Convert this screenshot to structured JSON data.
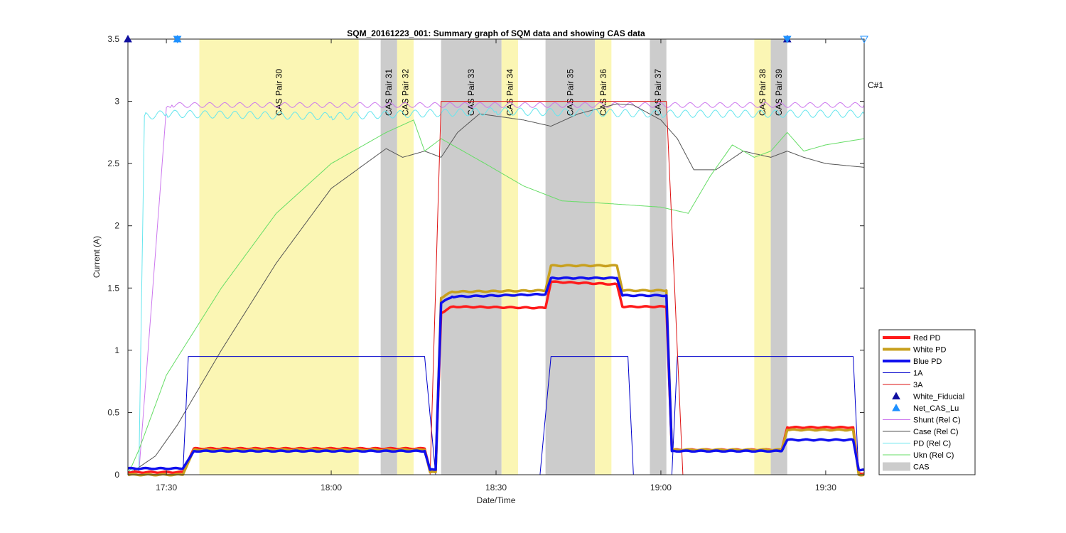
{
  "chart_data": {
    "type": "line",
    "title": "SQM_20161223_001: Summary graph of SQM data and showing CAS data",
    "xlabel": "Date/Time",
    "ylabel": "Current (A)",
    "xlim": [
      "17:23",
      "19:37"
    ],
    "ylim": [
      0,
      3.5
    ],
    "x_ticks": [
      "17:30",
      "18:00",
      "18:30",
      "19:00",
      "19:30"
    ],
    "y_ticks": [
      "0",
      "0.5",
      "1",
      "1.5",
      "2",
      "2.5",
      "3",
      "3.5"
    ],
    "grid": false,
    "legend_position": "bottom-right",
    "corner_label": "C#1",
    "cas_regions": [
      {
        "label": "CAS Pair 30",
        "start": "17:36",
        "end": "18:05",
        "color": "#fbf6b4"
      },
      {
        "label": "CAS Pair 31",
        "start": "18:09",
        "end": "18:12",
        "color": "#cccccc"
      },
      {
        "label": "CAS Pair 32",
        "start": "18:12",
        "end": "18:15",
        "color": "#fbf6b4"
      },
      {
        "label": "CAS Pair 33",
        "start": "18:20",
        "end": "18:31",
        "color": "#cccccc"
      },
      {
        "label": "CAS Pair 34",
        "start": "18:31",
        "end": "18:34",
        "color": "#fbf6b4"
      },
      {
        "label": "CAS Pair 35",
        "start": "18:39",
        "end": "18:48",
        "color": "#cccccc"
      },
      {
        "label": "CAS Pair 36",
        "start": "18:48",
        "end": "18:51",
        "color": "#fbf6b4"
      },
      {
        "label": "CAS Pair 37",
        "start": "18:58",
        "end": "19:01",
        "color": "#cccccc"
      },
      {
        "label": "CAS Pair 38",
        "start": "19:17",
        "end": "19:20",
        "color": "#fbf6b4"
      },
      {
        "label": "CAS Pair 39",
        "start": "19:20",
        "end": "19:23",
        "color": "#cccccc"
      }
    ],
    "markers": [
      {
        "series": "White_Fiducial",
        "x": "17:23",
        "y": 3.5,
        "shape": "triangle",
        "color": "#1010a0"
      },
      {
        "series": "Net_CAS_Lu",
        "x": "17:32",
        "y": 3.5,
        "shape": "triangle",
        "color": "#1e90ff"
      },
      {
        "series": "Net_CAS_Lu",
        "x": "17:32",
        "y": 3.5,
        "shape": "triangle-down",
        "color": "#1e90ff"
      },
      {
        "series": "White_Fiducial",
        "x": "19:23",
        "y": 3.5,
        "shape": "triangle",
        "color": "#1010a0"
      },
      {
        "series": "Net_CAS_Lu",
        "x": "19:23",
        "y": 3.5,
        "shape": "triangle-down",
        "color": "#1e90ff"
      },
      {
        "series": "Net_CAS_Lu",
        "x": "19:37",
        "y": 3.5,
        "shape": "triangle-down-open",
        "color": "#1e90ff"
      }
    ],
    "series": [
      {
        "name": "Shunt (Rel C)",
        "color": "#cc77ee",
        "width": 1,
        "ripple": 0.02,
        "points": [
          [
            "17:23",
            0
          ],
          [
            "17:25",
            0.02
          ],
          [
            "17:30",
            2.95
          ],
          [
            "17:31",
            2.97
          ],
          [
            "19:37",
            2.97
          ]
        ]
      },
      {
        "name": "Case (Rel C)",
        "color": "#555555",
        "width": 1,
        "ripple": 0,
        "points": [
          [
            "17:23",
            0
          ],
          [
            "17:28",
            0.15
          ],
          [
            "17:32",
            0.4
          ],
          [
            "17:40",
            1.0
          ],
          [
            "17:50",
            1.7
          ],
          [
            "18:00",
            2.3
          ],
          [
            "18:10",
            2.62
          ],
          [
            "18:13",
            2.55
          ],
          [
            "18:17",
            2.6
          ],
          [
            "18:20",
            2.55
          ],
          [
            "18:23",
            2.75
          ],
          [
            "18:27",
            2.9
          ],
          [
            "18:35",
            2.85
          ],
          [
            "18:40",
            2.8
          ],
          [
            "18:45",
            2.9
          ],
          [
            "18:52",
            2.98
          ],
          [
            "18:55",
            2.97
          ],
          [
            "19:00",
            2.85
          ],
          [
            "19:03",
            2.7
          ],
          [
            "19:06",
            2.45
          ],
          [
            "19:10",
            2.45
          ],
          [
            "19:15",
            2.6
          ],
          [
            "19:20",
            2.55
          ],
          [
            "19:23",
            2.6
          ],
          [
            "19:26",
            2.55
          ],
          [
            "19:30",
            2.5
          ],
          [
            "19:37",
            2.47
          ]
        ]
      },
      {
        "name": "PD (Rel C)",
        "color": "#66e6ee",
        "width": 1,
        "ripple": 0.03,
        "points": [
          [
            "17:23",
            0
          ],
          [
            "17:25",
            0.05
          ],
          [
            "17:26",
            2.88
          ],
          [
            "17:30",
            2.9
          ],
          [
            "18:00",
            2.88
          ],
          [
            "18:30",
            2.92
          ],
          [
            "19:00",
            2.9
          ],
          [
            "19:37",
            2.9
          ]
        ]
      },
      {
        "name": "Ukn (Rel C)",
        "color": "#66dd66",
        "width": 1,
        "ripple": 0,
        "points": [
          [
            "17:23",
            0
          ],
          [
            "17:25",
            0.2
          ],
          [
            "17:30",
            0.8
          ],
          [
            "17:40",
            1.5
          ],
          [
            "17:50",
            2.1
          ],
          [
            "18:00",
            2.5
          ],
          [
            "18:10",
            2.75
          ],
          [
            "18:15",
            2.85
          ],
          [
            "18:17",
            2.6
          ],
          [
            "18:20",
            2.7
          ],
          [
            "18:28",
            2.5
          ],
          [
            "18:35",
            2.32
          ],
          [
            "18:42",
            2.2
          ],
          [
            "18:50",
            2.18
          ],
          [
            "19:00",
            2.15
          ],
          [
            "19:05",
            2.1
          ],
          [
            "19:09",
            2.4
          ],
          [
            "19:13",
            2.65
          ],
          [
            "19:17",
            2.55
          ],
          [
            "19:20",
            2.6
          ],
          [
            "19:23",
            2.75
          ],
          [
            "19:26",
            2.6
          ],
          [
            "19:30",
            2.65
          ],
          [
            "19:37",
            2.7
          ]
        ]
      },
      {
        "name": "1A",
        "color": "#0000cc",
        "width": 1,
        "ripple": 0,
        "points": [
          [
            "17:23",
            0
          ],
          [
            "17:33",
            0
          ],
          [
            "17:34",
            0.95
          ],
          [
            "18:17",
            0.95
          ],
          [
            "18:19",
            0
          ],
          [
            "18:38",
            0
          ],
          [
            "18:40",
            0.95
          ],
          [
            "18:54",
            0.95
          ],
          [
            "18:55",
            0
          ],
          [
            "19:02",
            0
          ],
          [
            "19:03",
            0.95
          ],
          [
            "19:35",
            0.95
          ],
          [
            "19:36",
            0
          ],
          [
            "19:37",
            0
          ]
        ]
      },
      {
        "name": "3A",
        "color": "#dd1111",
        "width": 1,
        "ripple": 0,
        "points": [
          [
            "17:23",
            0
          ],
          [
            "18:18",
            0
          ],
          [
            "18:20",
            3.0
          ],
          [
            "19:01",
            3.0
          ],
          [
            "19:04",
            0
          ],
          [
            "19:37",
            0
          ]
        ]
      },
      {
        "name": "Red PD",
        "color": "#ff1a1a",
        "width": 3.5,
        "ripple": 0.004,
        "points": [
          [
            "17:23",
            0.02
          ],
          [
            "17:33",
            0.02
          ],
          [
            "17:35",
            0.21
          ],
          [
            "18:17",
            0.21
          ],
          [
            "18:18",
            0.03
          ],
          [
            "18:19",
            0.03
          ],
          [
            "18:20",
            1.3
          ],
          [
            "18:22",
            1.35
          ],
          [
            "18:39",
            1.34
          ],
          [
            "18:40",
            1.55
          ],
          [
            "18:52",
            1.53
          ],
          [
            "18:53",
            1.35
          ],
          [
            "19:01",
            1.35
          ],
          [
            "19:02",
            0.2
          ],
          [
            "19:22",
            0.2
          ],
          [
            "19:23",
            0.38
          ],
          [
            "19:35",
            0.38
          ],
          [
            "19:36",
            0.01
          ],
          [
            "19:37",
            0.01
          ]
        ]
      },
      {
        "name": "White PD",
        "color": "#c8a01e",
        "width": 3.5,
        "ripple": 0.004,
        "points": [
          [
            "17:23",
            0.0
          ],
          [
            "17:33",
            0.0
          ],
          [
            "17:35",
            0.2
          ],
          [
            "18:17",
            0.2
          ],
          [
            "18:18",
            0.02
          ],
          [
            "18:19",
            0.02
          ],
          [
            "18:20",
            1.42
          ],
          [
            "18:22",
            1.47
          ],
          [
            "18:39",
            1.48
          ],
          [
            "18:40",
            1.68
          ],
          [
            "18:52",
            1.68
          ],
          [
            "18:53",
            1.48
          ],
          [
            "19:01",
            1.48
          ],
          [
            "19:02",
            0.2
          ],
          [
            "19:22",
            0.2
          ],
          [
            "19:23",
            0.36
          ],
          [
            "19:35",
            0.36
          ],
          [
            "19:36",
            0.0
          ],
          [
            "19:37",
            0.0
          ]
        ]
      },
      {
        "name": "Blue PD",
        "color": "#1010ee",
        "width": 3.5,
        "ripple": 0.004,
        "points": [
          [
            "17:23",
            0.05
          ],
          [
            "17:33",
            0.05
          ],
          [
            "17:35",
            0.19
          ],
          [
            "18:17",
            0.19
          ],
          [
            "18:18",
            0.04
          ],
          [
            "18:19",
            0.04
          ],
          [
            "18:20",
            1.38
          ],
          [
            "18:22",
            1.43
          ],
          [
            "18:39",
            1.45
          ],
          [
            "18:40",
            1.58
          ],
          [
            "18:52",
            1.58
          ],
          [
            "18:53",
            1.44
          ],
          [
            "19:01",
            1.44
          ],
          [
            "19:02",
            0.19
          ],
          [
            "19:22",
            0.19
          ],
          [
            "19:23",
            0.28
          ],
          [
            "19:35",
            0.28
          ],
          [
            "19:36",
            0.04
          ],
          [
            "19:37",
            0.04
          ]
        ]
      }
    ],
    "legend": [
      {
        "label": "Red PD",
        "kind": "line",
        "color": "#ff1a1a",
        "width": 4
      },
      {
        "label": "White PD",
        "kind": "line",
        "color": "#c8a01e",
        "width": 4
      },
      {
        "label": "Blue PD",
        "kind": "line",
        "color": "#1010ee",
        "width": 4
      },
      {
        "label": "1A",
        "kind": "line",
        "color": "#0000cc",
        "width": 1
      },
      {
        "label": "3A",
        "kind": "line",
        "color": "#dd1111",
        "width": 1
      },
      {
        "label": "White_Fiducial",
        "kind": "marker",
        "color": "#1010a0"
      },
      {
        "label": "Net_CAS_Lu",
        "kind": "marker",
        "color": "#1e90ff"
      },
      {
        "label": "Shunt (Rel C)",
        "kind": "line",
        "color": "#cc77ee",
        "width": 1
      },
      {
        "label": "Case (Rel C)",
        "kind": "line",
        "color": "#555555",
        "width": 1
      },
      {
        "label": "PD (Rel C)",
        "kind": "line",
        "color": "#66e6ee",
        "width": 1
      },
      {
        "label": "Ukn (Rel C)",
        "kind": "line",
        "color": "#66dd66",
        "width": 1
      },
      {
        "label": "CAS",
        "kind": "patch",
        "color": "#cccccc"
      }
    ]
  }
}
